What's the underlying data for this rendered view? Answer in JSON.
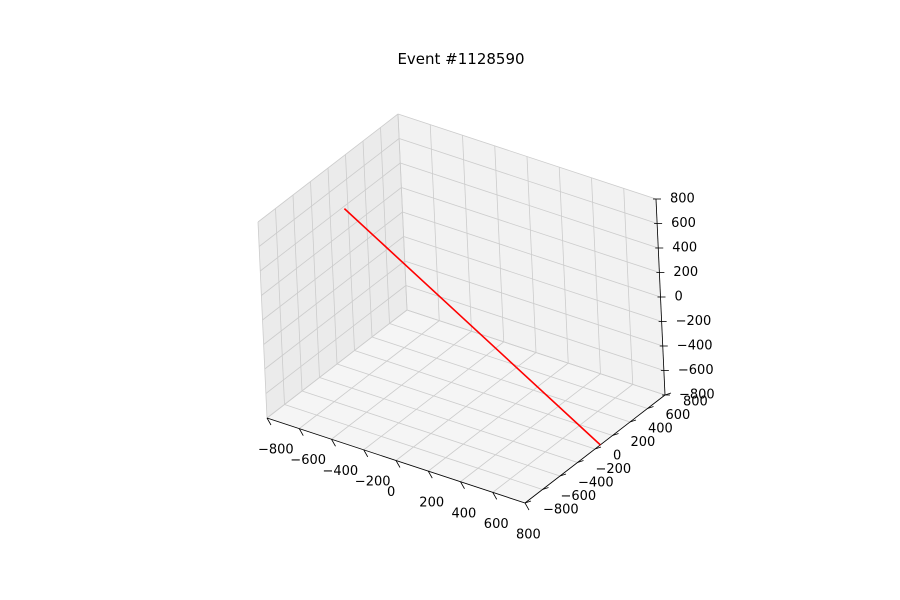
{
  "chart_data": {
    "type": "line",
    "projection": "3d",
    "title": "Event #1128590",
    "xlabel": "",
    "ylabel": "",
    "zlabel": "",
    "xlim": [
      -800,
      800
    ],
    "ylim": [
      -800,
      800
    ],
    "zlim": [
      -800,
      800
    ],
    "x_ticks": [
      "−800",
      "−600",
      "−400",
      "−200",
      "0",
      "200",
      "400",
      "600",
      "800"
    ],
    "y_ticks": [
      "−800",
      "−600",
      "−400",
      "−200",
      "0",
      "200",
      "400",
      "600",
      "800"
    ],
    "z_ticks": [
      "−800",
      "−600",
      "−400",
      "−200",
      "0",
      "200",
      "400",
      "600",
      "800"
    ],
    "grid": true,
    "series": [
      {
        "color": "#ff0000",
        "points": [
          {
            "x": -800,
            "y": 160,
            "z": 380
          },
          {
            "x": 800,
            "y": 60,
            "z": -800
          }
        ]
      }
    ],
    "pane_colors": {
      "back": "#f2f2f2",
      "side": "#ebebeb",
      "floor": "#f5f5f5",
      "grid": "#cccccc",
      "axis": "#000000"
    }
  }
}
